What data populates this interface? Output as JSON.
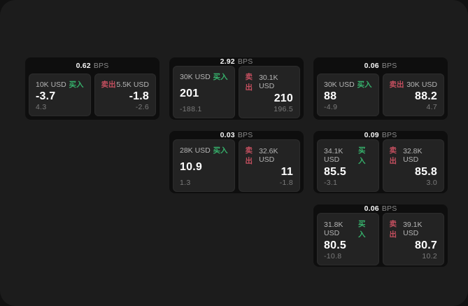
{
  "unit_label": "BPS",
  "colors": {
    "buy_green": "#36b06b",
    "sell_red": "#c44f5f",
    "window_bg": "#1c1c1c",
    "card_bg": "#0e0e0e",
    "panel_bg": "#232323"
  },
  "cards": [
    {
      "bps": "0.62",
      "buy": {
        "amount": "10K USD",
        "label": "买入",
        "value": "-3.7",
        "sub": "4.3"
      },
      "sell": {
        "label": "卖出",
        "amount": "5.5K USD",
        "value": "-1.8",
        "sub": "-2.6"
      }
    },
    {
      "bps": "2.92",
      "buy": {
        "amount": "30K USD",
        "label": "买入",
        "value": "201",
        "sub": "-188.1"
      },
      "sell": {
        "label": "卖出",
        "amount": "30.1K USD",
        "value": "210",
        "sub": "196.5"
      }
    },
    {
      "bps": "0.06",
      "buy": {
        "amount": "30K USD",
        "label": "买入",
        "value": "88",
        "sub": "-4.9"
      },
      "sell": {
        "label": "卖出",
        "amount": "30K USD",
        "value": "88.2",
        "sub": "4.7"
      }
    },
    {
      "bps": "0.03",
      "buy": {
        "amount": "28K USD",
        "label": "买入",
        "value": "10.9",
        "sub": "1.3"
      },
      "sell": {
        "label": "卖出",
        "amount": "32.6K USD",
        "value": "11",
        "sub": "-1.8"
      }
    },
    {
      "bps": "0.09",
      "buy": {
        "amount": "34.1K USD",
        "label": "买入",
        "value": "85.5",
        "sub": "-3.1"
      },
      "sell": {
        "label": "卖出",
        "amount": "32.8K USD",
        "value": "85.8",
        "sub": "3.0"
      }
    },
    {
      "bps": "0.06",
      "buy": {
        "amount": "31.8K USD",
        "label": "买入",
        "value": "80.5",
        "sub": "-10.8"
      },
      "sell": {
        "label": "卖出",
        "amount": "39.1K USD",
        "value": "80.7",
        "sub": "10.2"
      }
    }
  ]
}
